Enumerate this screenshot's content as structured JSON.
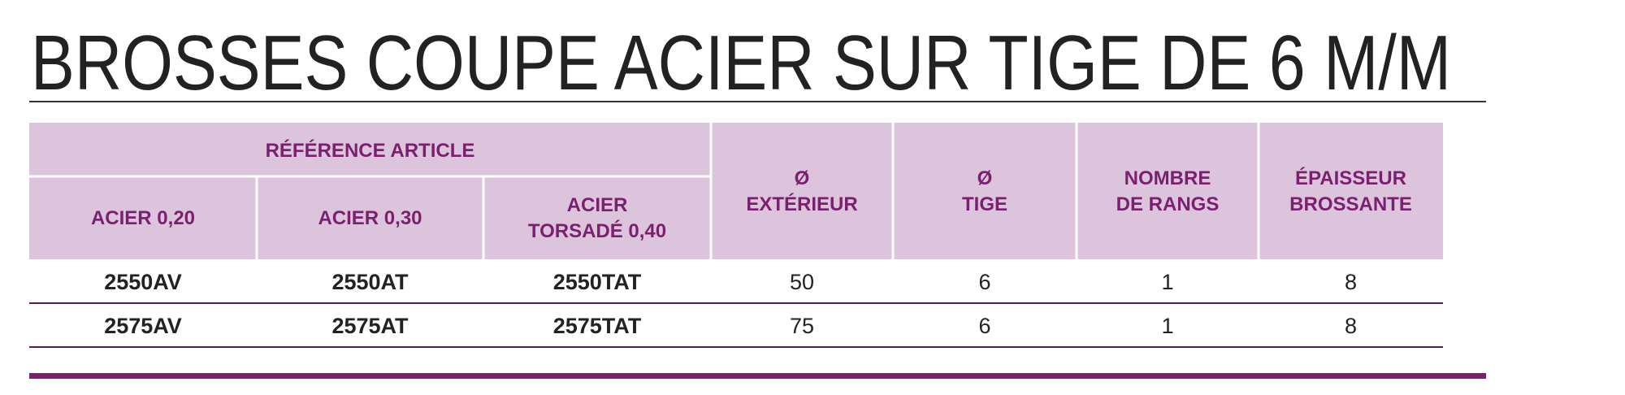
{
  "title": "BROSSES COUPE ACIER SUR TIGE DE 6 M/M",
  "table": {
    "group_header": "RÉFÉRENCE ARTICLE",
    "columns": [
      [
        "ACIER 0,20"
      ],
      [
        "ACIER 0,30"
      ],
      [
        "ACIER",
        "TORSADÉ 0,40"
      ],
      [
        "Ø",
        "EXTÉRIEUR"
      ],
      [
        "Ø",
        "TIGE"
      ],
      [
        "NOMBRE",
        "DE RANGS"
      ],
      [
        "ÉPAISSEUR",
        "BROSSANTE"
      ]
    ],
    "rows": [
      [
        "2550AV",
        "2550AT",
        "2550TAT",
        50,
        6,
        1,
        8
      ],
      [
        "2575AV",
        "2575AT",
        "2575TAT",
        75,
        6,
        1,
        8
      ]
    ]
  }
}
